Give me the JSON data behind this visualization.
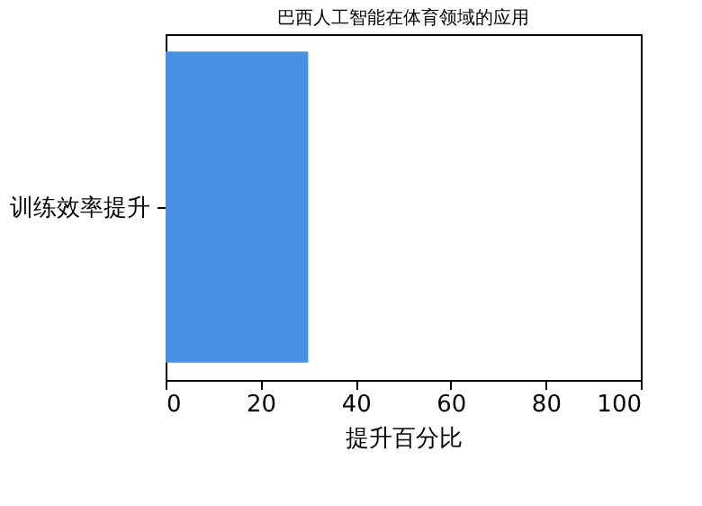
{
  "chart_data": {
    "type": "bar",
    "orientation": "horizontal",
    "title": "巴西人工智能在体育领域的应用",
    "xlabel": "提升百分比",
    "categories": [
      "训练效率提升"
    ],
    "series": [
      {
        "color": "#4a90e2",
        "values": [
          30
        ]
      }
    ],
    "xlim": [
      0,
      100
    ],
    "xticks": [
      0,
      20,
      40,
      60,
      80,
      100
    ],
    "grid": false,
    "legend": false
  }
}
